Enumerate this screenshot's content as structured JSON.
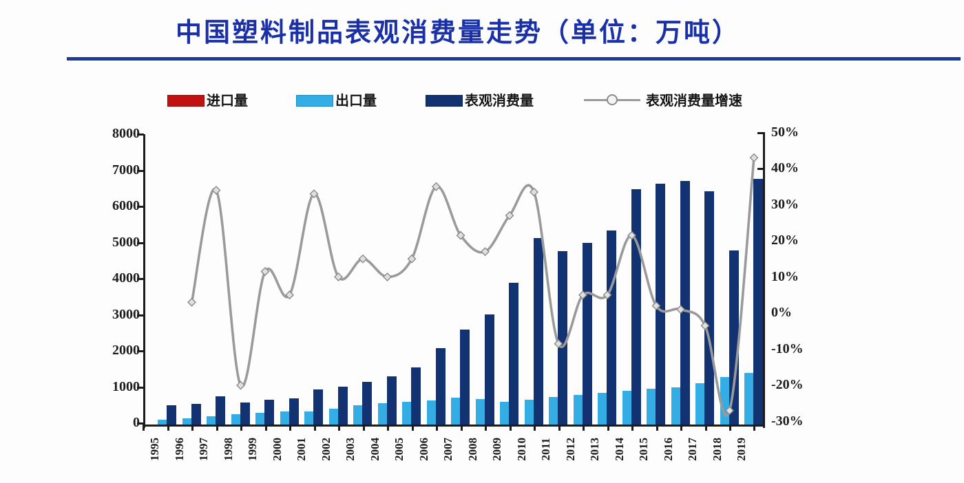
{
  "title": "中国塑料制品表观消费量走势（单位：万吨）",
  "legend": [
    {
      "label": "进口量",
      "swatch": "bar",
      "color": "#c11212"
    },
    {
      "label": "出口量",
      "swatch": "bar",
      "color": "#33ade3"
    },
    {
      "label": "表观消费量",
      "swatch": "bar",
      "color": "#133272"
    },
    {
      "label": "表观消费量增速",
      "swatch": "line-marker",
      "color": "#9a9a9a"
    }
  ],
  "chart_data": {
    "type": "bar",
    "subtype": "grouped bars with secondary-axis line (combo chart)",
    "title": "中国塑料制品表观消费量走势（单位：万吨）",
    "categories": [
      "1995",
      "1996",
      "1997",
      "1998",
      "1999",
      "2000",
      "2001",
      "2002",
      "2003",
      "2004",
      "2005",
      "2006",
      "2007",
      "2008",
      "2009",
      "2010",
      "2011",
      "2012",
      "2013",
      "2014",
      "2015",
      "2016",
      "2017",
      "2018",
      "2019"
    ],
    "series": [
      {
        "name": "进口量",
        "type": "bar",
        "color": "#c11212",
        "axis": "left",
        "values": null,
        "note": "legend entry present but bars are not visible in the plot"
      },
      {
        "name": "出口量",
        "type": "bar",
        "color": "#33ade3",
        "axis": "left",
        "values": [
          90,
          140,
          200,
          240,
          280,
          320,
          330,
          400,
          500,
          560,
          590,
          620,
          710,
          670,
          590,
          640,
          730,
          780,
          830,
          900,
          950,
          1000,
          1100,
          1270,
          1390
        ]
      },
      {
        "name": "表观消费量",
        "type": "bar",
        "color": "#133272",
        "axis": "left",
        "values": [
          500,
          530,
          740,
          580,
          650,
          690,
          925,
          1010,
          1150,
          1300,
          1550,
          2070,
          2590,
          3010,
          3880,
          5130,
          4760,
          5000,
          5330,
          6480,
          6620,
          6700,
          6410,
          4790,
          6760
        ]
      },
      {
        "name": "表观消费量增速",
        "type": "line",
        "color": "#9a9a9a",
        "marker": "diamond",
        "axis": "right",
        "unit": "%",
        "values": [
          null,
          3,
          34,
          -20,
          11.5,
          5,
          33,
          10,
          15,
          10,
          15,
          35,
          21.5,
          17,
          27,
          33.5,
          -8.5,
          5,
          5,
          21.5,
          2,
          1,
          -3.5,
          -27,
          43
        ]
      }
    ],
    "left_axis": {
      "min": 0,
      "max": 8000,
      "step": 1000,
      "ticks": [
        {
          "value": 0,
          "label": "0"
        },
        {
          "value": 1000,
          "label": "1000"
        },
        {
          "value": 2000,
          "label": "2000"
        },
        {
          "value": 3000,
          "label": "3000"
        },
        {
          "value": 4000,
          "label": "4000"
        },
        {
          "value": 5000,
          "label": "5000"
        },
        {
          "value": 6000,
          "label": "6000"
        },
        {
          "value": 7000,
          "label": "7000"
        },
        {
          "value": 8000,
          "label": "8000"
        }
      ]
    },
    "right_axis": {
      "min": -30,
      "max": 50,
      "step": 10,
      "ticks": [
        {
          "value": -30,
          "label": "-30%"
        },
        {
          "value": -20,
          "label": "-20%"
        },
        {
          "value": -10,
          "label": "-10%"
        },
        {
          "value": 0,
          "label": "0%"
        },
        {
          "value": 10,
          "label": "10%"
        },
        {
          "value": 20,
          "label": "20%"
        },
        {
          "value": 30,
          "label": "30%"
        },
        {
          "value": 40,
          "label": "40%"
        },
        {
          "value": 50,
          "label": "50%"
        }
      ]
    },
    "grid": false,
    "legend_position": "top"
  }
}
